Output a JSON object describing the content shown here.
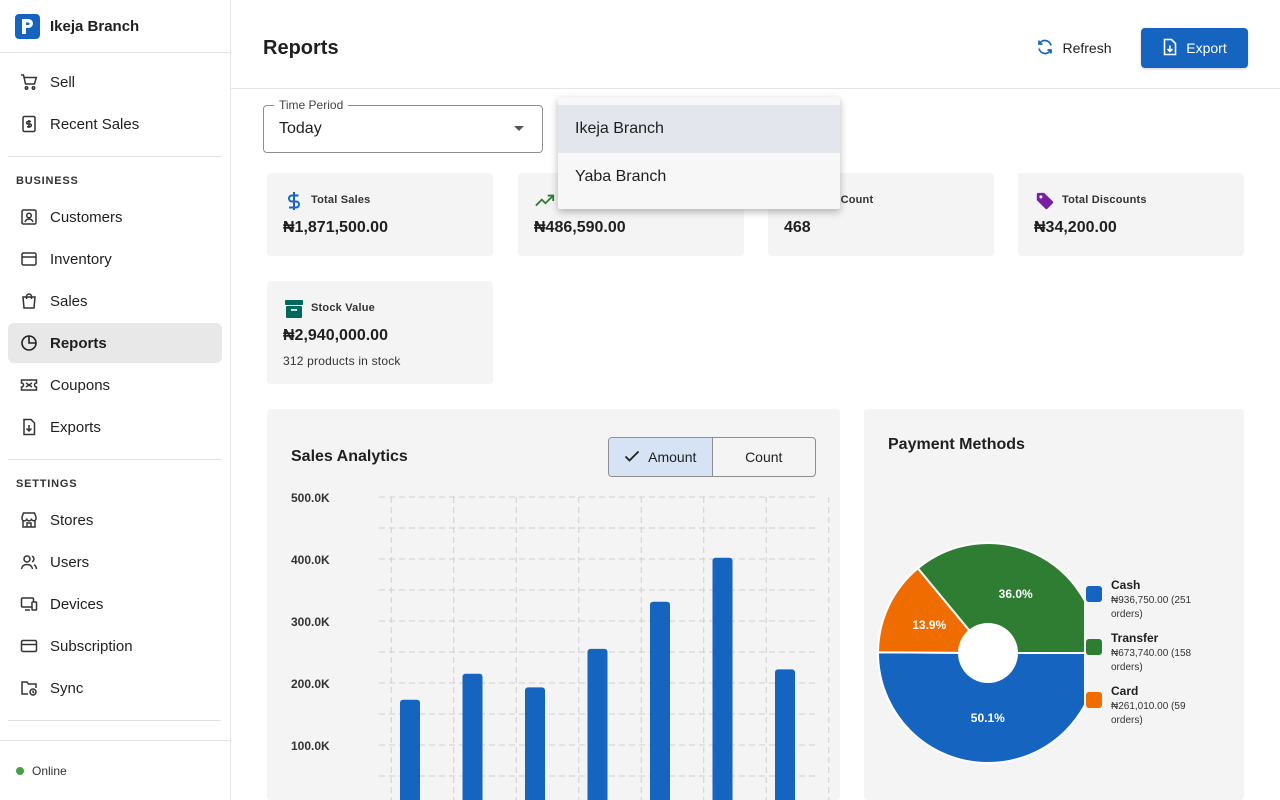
{
  "app": {
    "branch_name": "Ikeja Branch"
  },
  "sidebar": {
    "top_items": [
      {
        "label": "Sell",
        "icon": "cart-icon"
      },
      {
        "label": "Recent Sales",
        "icon": "receipt-icon"
      }
    ],
    "business_title": "BUSINESS",
    "business_items": [
      {
        "label": "Customers",
        "icon": "customer-icon"
      },
      {
        "label": "Inventory",
        "icon": "inventory-icon"
      },
      {
        "label": "Sales",
        "icon": "shopping-bag-icon"
      },
      {
        "label": "Reports",
        "icon": "pie-chart-icon",
        "active": true
      },
      {
        "label": "Coupons",
        "icon": "coupon-icon"
      },
      {
        "label": "Exports",
        "icon": "export-file-icon"
      }
    ],
    "settings_title": "SETTINGS",
    "settings_items": [
      {
        "label": "Stores",
        "icon": "store-icon"
      },
      {
        "label": "Users",
        "icon": "users-icon"
      },
      {
        "label": "Devices",
        "icon": "devices-icon"
      },
      {
        "label": "Subscription",
        "icon": "credit-card-icon"
      },
      {
        "label": "Sync",
        "icon": "sync-folder-icon"
      }
    ],
    "status_label": "Online"
  },
  "header": {
    "title": "Reports",
    "refresh_label": "Refresh",
    "export_label": "Export"
  },
  "filters": {
    "time_period_label": "Time Period",
    "time_period_value": "Today"
  },
  "branch_menu": {
    "options": [
      "Ikeja Branch",
      "Yaba Branch"
    ],
    "selected": "Ikeja Branch"
  },
  "cards": {
    "total_sales": {
      "label": "Total Sales",
      "value": "₦1,871,500.00",
      "icon": "dollar-icon"
    },
    "profit": {
      "label": "",
      "value": "₦486,590.00",
      "icon": "trending-up-icon"
    },
    "count": {
      "label": "s Count",
      "value": "468",
      "icon": "orders-icon"
    },
    "total_discounts": {
      "label": "Total Discounts",
      "value": "₦34,200.00",
      "icon": "tag-icon"
    },
    "stock_value": {
      "label": "Stock Value",
      "value": "₦2,940,000.00",
      "sub": "312 products in stock",
      "icon": "archive-box-icon"
    }
  },
  "sales_analytics": {
    "title": "Sales Analytics",
    "toggle_amount": "Amount",
    "toggle_count": "Count",
    "active_toggle": "Amount"
  },
  "payment_methods": {
    "title": "Payment Methods",
    "legend": [
      {
        "name": "Cash",
        "detail": "₦936,750.00 (251 orders)",
        "color": "#1565c0"
      },
      {
        "name": "Transfer",
        "detail": "₦673,740.00 (158 orders)",
        "color": "#2e7d32"
      },
      {
        "name": "Card",
        "detail": "₦261,010.00 (59 orders)",
        "color": "#ef6c00"
      }
    ]
  },
  "chart_data": [
    {
      "type": "bar",
      "title": "Sales Analytics",
      "categories": [
        "",
        "",
        "",
        "",
        "",
        "",
        ""
      ],
      "values": [
        173000,
        215000,
        193000,
        255000,
        331000,
        402000,
        222000
      ],
      "y_tick_labels": [
        "500.0K",
        "400.0K",
        "300.0K",
        "200.0K",
        "100.0K"
      ],
      "ylim": [
        0,
        500000
      ],
      "grid": true,
      "color": "#1565c0"
    },
    {
      "type": "pie",
      "title": "Payment Methods",
      "slices": [
        {
          "label": "Cash",
          "value": 50.1,
          "display": "50.1%",
          "color": "#1565c0"
        },
        {
          "label": "Card",
          "value": 13.9,
          "display": "13.9%",
          "color": "#ef6c00"
        },
        {
          "label": "Transfer",
          "value": 36.0,
          "display": "36.0%",
          "color": "#2e7d32"
        }
      ],
      "donut": true,
      "legend_position": "right"
    }
  ]
}
